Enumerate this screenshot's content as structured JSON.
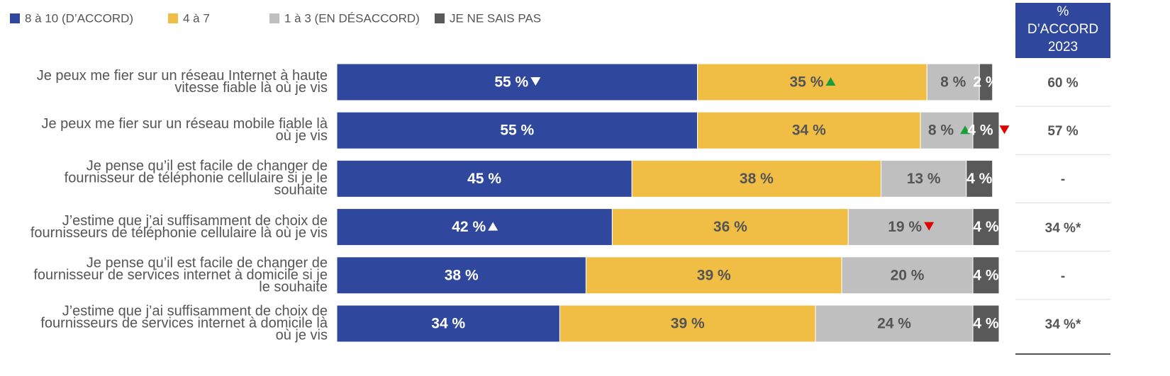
{
  "chart_data": {
    "type": "stacked-bar",
    "orientation": "horizontal",
    "categories": [
      "Je peux me fier sur un réseau Internet à haute\nvitesse fiable là où je vis",
      "Je peux me fier sur un réseau mobile fiable là\noù je vis",
      "Je pense qu’il est facile de changer de\nfournisseur de téléphonie cellulaire si je le\nsouhaite",
      "J’estime que j’ai suffisamment de choix de\nfournisseurs de téléphonie cellulaire là où je vis",
      "Je pense qu’il est facile de changer de\nfournisseur de services internet à domicile si je\nle souhaite",
      "J’estime que j’ai suffisamment de choix de\nfournisseurs de services internet à domicile là\noù je vis"
    ],
    "xlim": [
      0,
      101
    ],
    "legend": "top",
    "series": [
      {
        "name": "8 à 10 (D’ACCORD)",
        "color": "#2f479c",
        "label_color": "#ffffff",
        "values": [
          55,
          55,
          45,
          42,
          38,
          34
        ],
        "value_labels": [
          "55 %",
          "55 %",
          "45 %",
          "42 %",
          "38 %",
          "34 %"
        ],
        "arrows": [
          {
            "dir": "down",
            "color": "#ffffff"
          },
          null,
          null,
          {
            "dir": "up",
            "color": "#ffffff"
          },
          null,
          null
        ]
      },
      {
        "name": "4 à 7",
        "color": "#f0bd45",
        "label_color": "#555555",
        "values": [
          35,
          34,
          38,
          36,
          39,
          39
        ],
        "value_labels": [
          "35 %",
          "34 %",
          "38 %",
          "36 %",
          "39 %",
          "39 %"
        ],
        "arrows": [
          {
            "dir": "up",
            "color": "#1a9e3a"
          },
          null,
          null,
          null,
          null,
          null
        ]
      },
      {
        "name": "1 à 3 (EN DÉSACCORD)",
        "color": "#bfbfbf",
        "label_color": "#555555",
        "values": [
          8,
          8,
          13,
          19,
          20,
          24
        ],
        "value_labels": [
          "8 %",
          "8 %",
          "13 %",
          "19 %",
          "20 %",
          "24 %"
        ],
        "arrows": [
          null,
          {
            "dir": "up",
            "color": "#1a9e3a"
          },
          null,
          {
            "dir": "down",
            "color": "#e00000"
          },
          null,
          null
        ]
      },
      {
        "name": "JE NE SAIS PAS",
        "color": "#595959",
        "label_color": "#ffffff",
        "values": [
          2,
          4,
          4,
          4,
          4,
          4
        ],
        "value_labels": [
          "2 %",
          "4 %",
          "4 %",
          "4 %",
          "4 %",
          "4 %"
        ],
        "arrows": [
          null,
          {
            "dir": "down",
            "color": "#e00000"
          },
          null,
          null,
          null,
          null
        ]
      }
    ],
    "side_column": {
      "header": "%\nD’ACCORD\n2023",
      "color": "#2f479c",
      "values": [
        "60 %",
        "57 %",
        "-",
        "34 %*",
        "-",
        "34 %*"
      ]
    }
  }
}
